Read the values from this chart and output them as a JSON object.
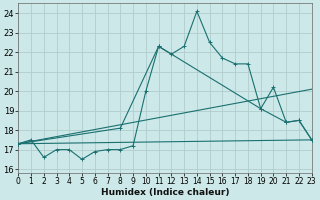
{
  "xlabel": "Humidex (Indice chaleur)",
  "x_ticks": [
    0,
    1,
    2,
    3,
    4,
    5,
    6,
    7,
    8,
    9,
    10,
    11,
    12,
    13,
    14,
    15,
    16,
    17,
    18,
    19,
    20,
    21,
    22,
    23
  ],
  "xlim": [
    0,
    23
  ],
  "ylim": [
    15.8,
    24.5
  ],
  "y_ticks": [
    16,
    17,
    18,
    19,
    20,
    21,
    22,
    23,
    24
  ],
  "background_color": "#cde8e8",
  "grid_color": "#b0cccc",
  "line_color": "#1a7070",
  "series_main": {
    "x": [
      0,
      1,
      2,
      3,
      4,
      5,
      6,
      7,
      8,
      9,
      10,
      11,
      12,
      13,
      14,
      15,
      16,
      17,
      18,
      19,
      20,
      21,
      22,
      23
    ],
    "y": [
      17.3,
      17.5,
      16.6,
      17.0,
      17.0,
      16.5,
      16.9,
      17.0,
      17.0,
      17.2,
      20.0,
      22.3,
      21.9,
      22.3,
      24.1,
      22.5,
      21.7,
      21.4,
      21.4,
      19.1,
      20.2,
      18.4,
      18.5,
      17.5
    ]
  },
  "series_line1": {
    "x": [
      0,
      23
    ],
    "y": [
      17.3,
      20.1
    ]
  },
  "series_line2": {
    "x": [
      0,
      23
    ],
    "y": [
      17.3,
      17.5
    ]
  },
  "series_sparse": {
    "x": [
      0,
      8,
      11,
      19,
      21,
      22,
      23
    ],
    "y": [
      17.3,
      18.1,
      22.3,
      19.1,
      18.4,
      18.5,
      17.5
    ]
  }
}
